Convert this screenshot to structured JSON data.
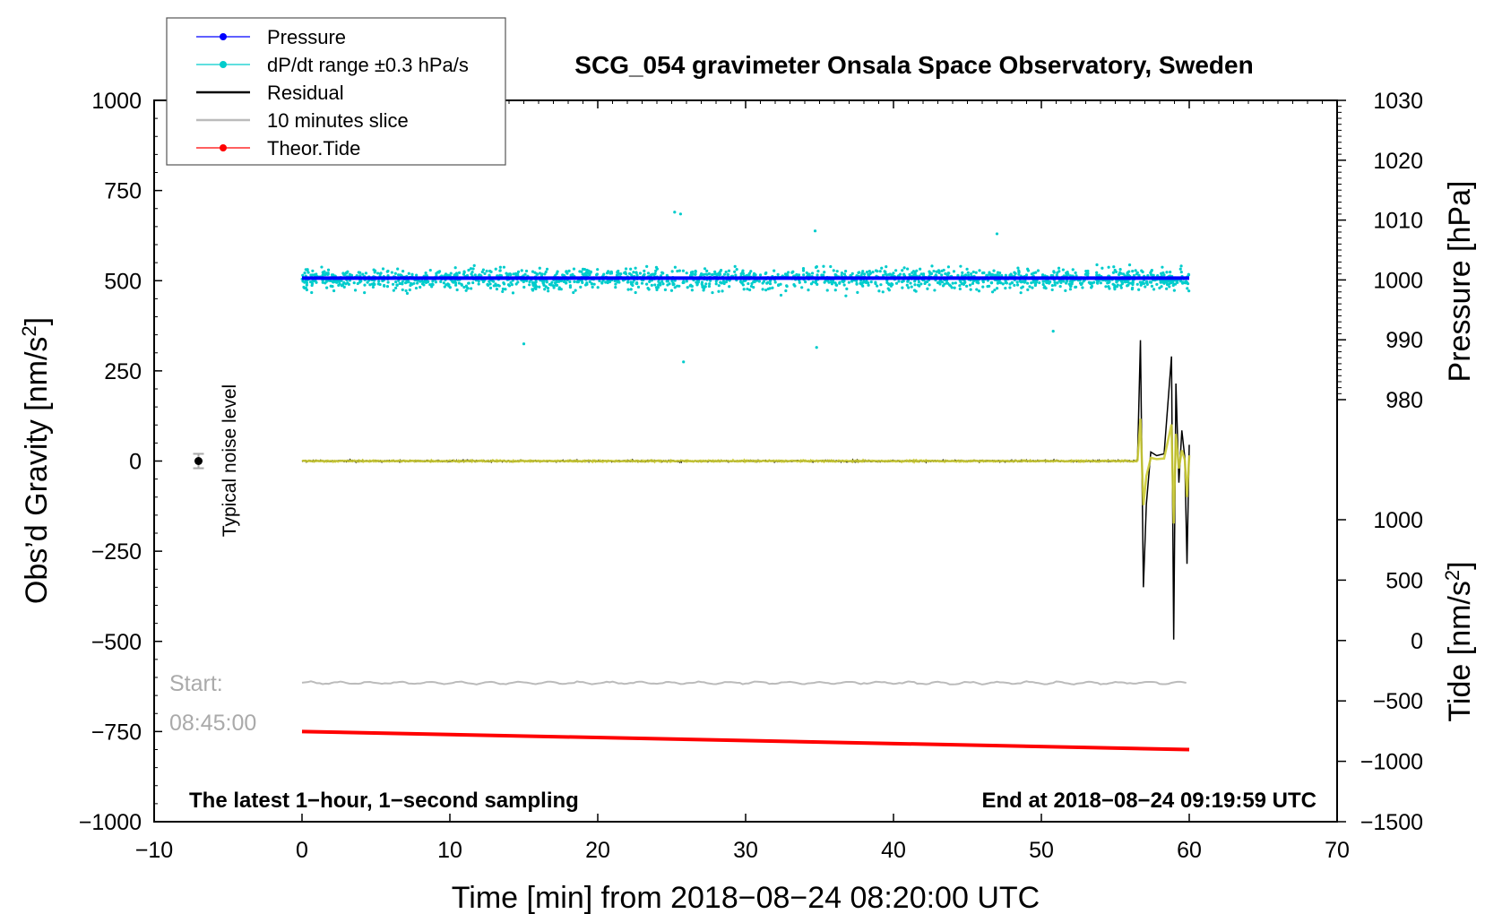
{
  "chart_data": {
    "type": "line",
    "title": "SCG_054 gravimeter Onsala Space Observatory, Sweden",
    "xlabel": "Time [min] from 2018−08−24 08:20:00 UTC",
    "ylabel_left": "Obs’d Gravity [nm/s",
    "ylabel_left_sup": "2",
    "ylabel_left_close": "]",
    "ylabel_right_top": "Pressure [hPa]",
    "ylabel_right_bottom": "Tide [nm/s",
    "ylabel_right_bottom_sup": "2",
    "ylabel_right_bottom_close": "]",
    "xlim": [
      -10,
      70
    ],
    "ylim": [
      -1000,
      1000
    ],
    "pressure_axis_range": [
      980,
      1030
    ],
    "tide_axis_range": [
      -1500,
      1000
    ],
    "x_ticks": [
      "−10",
      "0",
      "10",
      "20",
      "30",
      "40",
      "50",
      "60",
      "70"
    ],
    "y_ticks_left": [
      "1000",
      "750",
      "500",
      "250",
      "0",
      "−250",
      "−500",
      "−750",
      "−1000"
    ],
    "y_ticks_pressure": [
      "1030",
      "1020",
      "1010",
      "1000",
      "990",
      "980"
    ],
    "y_ticks_tide": [
      "1000",
      "500",
      "0",
      "−500",
      "−1000",
      "−1500"
    ],
    "legend": {
      "placement": "top-left",
      "entries": [
        {
          "label": "Pressure",
          "color": "#0000ff"
        },
        {
          "label": "dP/dt range ±0.3 hPa/s",
          "color": "#00cccc"
        },
        {
          "label": "Residual",
          "color": "#000000"
        },
        {
          "label": "10 minutes slice",
          "color": "#bbbbbb"
        },
        {
          "label": "Theor.Tide",
          "color": "#ff0000"
        }
      ]
    },
    "series": [
      {
        "name": "Pressure",
        "unit": "hPa",
        "x": [
          0,
          60
        ],
        "values": [
          1000.3,
          1000.3
        ]
      },
      {
        "name": "dP/dt range ±0.3 hPa/s",
        "unit": "nm/s2",
        "x_range": [
          0,
          60
        ],
        "center": 505,
        "spread": 25,
        "outliers": [
          [
            25.2,
            690
          ],
          [
            25.6,
            685
          ],
          [
            15,
            325
          ],
          [
            25.8,
            275
          ],
          [
            34.8,
            315
          ],
          [
            34.7,
            638
          ],
          [
            50.8,
            360
          ],
          [
            47,
            630
          ]
        ]
      },
      {
        "name": "Residual",
        "unit": "nm/s2",
        "x": [
          0,
          56.5,
          56.7,
          56.9,
          57.1,
          57.4,
          57.8,
          58.3,
          58.8,
          58.95,
          59.1,
          59.3,
          59.5,
          59.7,
          59.85,
          60
        ],
        "values": [
          0,
          0,
          335,
          -350,
          -120,
          25,
          15,
          20,
          290,
          -495,
          215,
          -60,
          85,
          10,
          -285,
          45
        ]
      },
      {
        "name": "10 minutes slice",
        "unit": "nm/s2",
        "x": [
          0,
          60
        ],
        "values": [
          -615,
          -615
        ]
      },
      {
        "name": "Theor.Tide",
        "unit": "nm/s2",
        "x": [
          0,
          60
        ],
        "values": [
          -750,
          -800
        ]
      }
    ],
    "annotations": {
      "noise_label": "Typical noise level",
      "noise_x": -7,
      "noise_y": 0,
      "noise_err": 20,
      "start_label_1": "Start:",
      "start_label_2": "08:45:00",
      "bottom_left": "The latest 1−hour, 1−second sampling",
      "bottom_right": "End at 2018−08−24 09:19:59 UTC"
    }
  }
}
